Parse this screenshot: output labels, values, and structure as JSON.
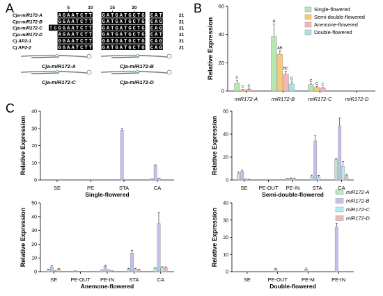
{
  "panels": {
    "A": "A",
    "B": "B",
    "C": "C"
  },
  "alignment": {
    "position_marks": [
      "5",
      "10",
      "15",
      "20"
    ],
    "rows": [
      {
        "name": "Cja-miR172-A",
        "seq": "  AGAATCTT  GATGATGCTG CAT",
        "len": "21"
      },
      {
        "name": "Cja-miR172-B",
        "seq": "  GGAATCTT  GATGATGCTG CAG",
        "len": "21"
      },
      {
        "name": "Cja-miR172-C",
        "seq": "TGGGAATCTT  GATGATGCTG CAG",
        "len": "21"
      },
      {
        "name": "Cja-miR172-D",
        "seq": "  AGAATCTT  GATGATGCTG CAT",
        "len": "21"
      },
      {
        "name": "Cj AP2-1",
        "seq": "  GGAATCTT  GATGATGCTG CAG",
        "len": "21"
      },
      {
        "name": "Cj AP2-2",
        "seq": "  GGAATCTT  GATGATGCTG CAG",
        "len": "21"
      }
    ],
    "hairpin_labels": [
      "Cja-miR172-A",
      "Cja-miR172-B",
      "Cja-miR172-C",
      "Cja-miR172-D"
    ]
  },
  "colors": {
    "single": "#b8e6b0",
    "semi": "#f7c97a",
    "anemone": "#f4b6b6",
    "double": "#a9e2e6",
    "mirA": "#b9e8c6",
    "mirB": "#c3c0ee",
    "mirC": "#b3ecec",
    "mirD": "#f2b9b0"
  },
  "legend_B": [
    "Single-flowered",
    "Semi-double-flowered",
    "Anemone-flowered",
    "Double-flowered"
  ],
  "legend_C": [
    "miR172-A",
    "miR172-B",
    "miR172-C",
    "miR172-D"
  ],
  "chart_data": [
    {
      "id": "B",
      "type": "bar",
      "ylabel": "Relative Expression",
      "ylim": [
        0,
        60
      ],
      "yticks": [
        0,
        20,
        40,
        60
      ],
      "categories": [
        "miR172-A",
        "miR172-B",
        "miR172-C",
        "miR172-D"
      ],
      "series": [
        {
          "name": "Single-flowered",
          "values": [
            5.5,
            38.5,
            4.5,
            0
          ],
          "errors": [
            2,
            9,
            0.6,
            0
          ],
          "labels": [
            "C",
            "A",
            "C",
            ""
          ]
        },
        {
          "name": "Semi-double-flowered",
          "values": [
            0.8,
            26,
            2.5,
            0
          ],
          "errors": [
            0.3,
            2.5,
            0.8,
            0
          ],
          "labels": [
            "C",
            "AB",
            "C",
            ""
          ]
        },
        {
          "name": "Anemone-flowered",
          "values": [
            1.2,
            12,
            2,
            0
          ],
          "errors": [
            0.3,
            2,
            0.5,
            0
          ],
          "labels": [
            "C",
            "BC",
            "C",
            ""
          ]
        },
        {
          "name": "Double-flowered",
          "values": [
            0,
            5,
            0,
            0
          ],
          "errors": [
            0,
            2,
            0,
            0
          ],
          "labels": [
            "",
            "C",
            "",
            ""
          ]
        }
      ]
    },
    {
      "id": "C1",
      "type": "bar",
      "title": "Single-flowered",
      "ylabel": "Relative Expression",
      "ylim": [
        0,
        40
      ],
      "yticks": [
        0,
        10,
        20,
        30,
        40
      ],
      "categories": [
        "SE",
        "PE",
        "STA",
        "CA"
      ],
      "series": [
        {
          "name": "miR172-A",
          "values": [
            0,
            0,
            0,
            0.6
          ],
          "errors": [
            0,
            0,
            0,
            0.1
          ]
        },
        {
          "name": "miR172-B",
          "values": [
            0,
            0,
            29,
            8.5
          ],
          "errors": [
            0,
            0,
            1,
            0.3
          ]
        },
        {
          "name": "miR172-C",
          "values": [
            0,
            0,
            0,
            1
          ],
          "errors": [
            0,
            0,
            0,
            0.1
          ]
        },
        {
          "name": "miR172-D",
          "values": [
            0,
            0,
            0,
            0
          ],
          "errors": [
            0,
            0,
            0,
            0
          ]
        }
      ]
    },
    {
      "id": "C2",
      "type": "bar",
      "title": "Semi-double-flowered",
      "ylabel": "Relative Expression",
      "ylim": [
        0,
        60
      ],
      "yticks": [
        0,
        20,
        40,
        60
      ],
      "categories": [
        "SE",
        "PE-OUT",
        "PE-IN",
        "STA",
        "CA"
      ],
      "series": [
        {
          "name": "miR172-A",
          "values": [
            6,
            0,
            1.2,
            3,
            18
          ],
          "errors": [
            1,
            0,
            0.3,
            1.2,
            0.5
          ]
        },
        {
          "name": "miR172-B",
          "values": [
            7.5,
            0,
            1.5,
            34,
            47
          ],
          "errors": [
            1,
            0,
            0.3,
            5,
            7
          ]
        },
        {
          "name": "miR172-C",
          "values": [
            0.8,
            0,
            1.2,
            3,
            12
          ],
          "errors": [
            0.2,
            0,
            0.3,
            1,
            4
          ]
        },
        {
          "name": "miR172-D",
          "values": [
            0.5,
            0,
            0,
            0,
            4
          ],
          "errors": [
            0.1,
            0,
            0,
            0,
            1
          ]
        }
      ]
    },
    {
      "id": "C3",
      "type": "bar",
      "title": "Anemone-flowered",
      "ylabel": "Relative Expression",
      "ylim": [
        0,
        50
      ],
      "yticks": [
        0,
        10,
        20,
        30,
        40,
        50
      ],
      "categories": [
        "SE",
        "PE-OUT",
        "PE-IN",
        "STA",
        "CA"
      ],
      "series": [
        {
          "name": "miR172-A",
          "values": [
            1.5,
            0.5,
            1,
            2,
            2.5
          ],
          "errors": [
            0.3,
            0.1,
            0.2,
            0.5,
            0.4
          ]
        },
        {
          "name": "miR172-B",
          "values": [
            3.5,
            0,
            4,
            13.5,
            35
          ],
          "errors": [
            1,
            0,
            0.8,
            2,
            8
          ]
        },
        {
          "name": "miR172-C",
          "values": [
            0.5,
            0,
            1,
            2,
            3
          ],
          "errors": [
            0.1,
            0,
            0.2,
            0.4,
            0.6
          ]
        },
        {
          "name": "miR172-D",
          "values": [
            2,
            0,
            0.5,
            1.5,
            3
          ],
          "errors": [
            0.3,
            0,
            0.1,
            0.3,
            0.5
          ]
        }
      ]
    },
    {
      "id": "C4",
      "type": "bar",
      "title": "Double-flowered",
      "ylabel": "Relative Expression",
      "ylim": [
        0,
        40
      ],
      "yticks": [
        0,
        10,
        20,
        30,
        40
      ],
      "categories": [
        "SE",
        "PE-OUT",
        "PE-M",
        "PE-IN"
      ],
      "series": [
        {
          "name": "miR172-A",
          "values": [
            0,
            0,
            0,
            0
          ],
          "errors": [
            0,
            0,
            0,
            0
          ]
        },
        {
          "name": "miR172-B",
          "values": [
            0,
            1.5,
            1.5,
            26
          ],
          "errors": [
            0,
            0.4,
            0.6,
            2
          ]
        },
        {
          "name": "miR172-C",
          "values": [
            0,
            0,
            0,
            0
          ],
          "errors": [
            0,
            0,
            0,
            0
          ]
        },
        {
          "name": "miR172-D",
          "values": [
            0,
            0,
            0,
            0
          ],
          "errors": [
            0,
            0,
            0,
            0
          ]
        }
      ]
    }
  ]
}
